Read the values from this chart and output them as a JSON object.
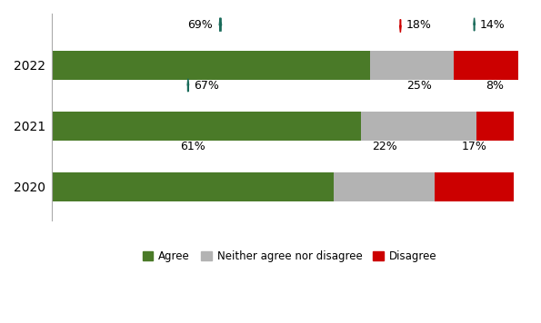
{
  "years": [
    "2022",
    "2021",
    "2020"
  ],
  "agree": [
    69,
    67,
    61
  ],
  "neither": [
    18,
    25,
    22
  ],
  "disagree": [
    14,
    8,
    17
  ],
  "agree_color": "#4a7a28",
  "neither_color": "#b3b3b3",
  "disagree_color": "#cc0000",
  "legend_labels": [
    "Agree",
    "Neither agree nor disagree",
    "Disagree"
  ],
  "legend_colors": [
    "#4a7a28",
    "#b3b3b3",
    "#cc0000"
  ],
  "teal_arrow_color": "#1a6b5a",
  "red_arrow_color": "#cc0000"
}
